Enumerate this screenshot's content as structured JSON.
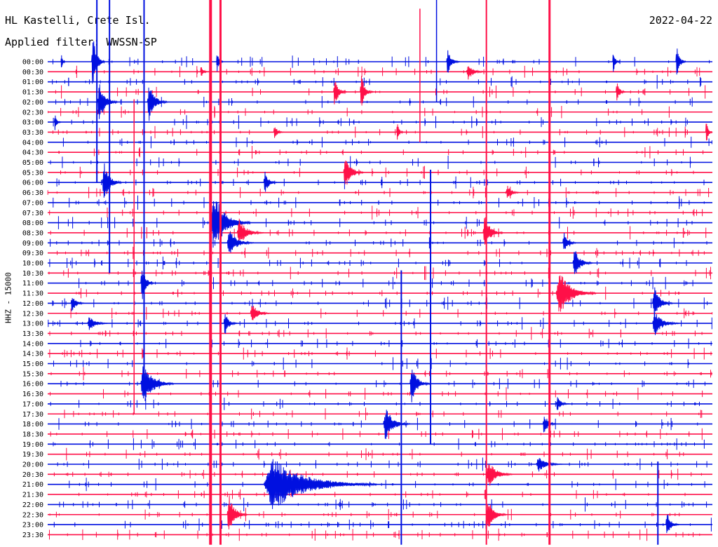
{
  "header": {
    "station": "HL Kastelli, Crete Isl.",
    "filter": "Applied filter: WWSSN-SP",
    "date": "2022-04-22"
  },
  "colors": {
    "blue": "#0010e0",
    "red": "#ff1048"
  },
  "chart_data": {
    "type": "line",
    "title": "HL Kastelli, Crete Isl.",
    "subtitle": "Applied filter: WWSSN-SP",
    "date": "2022-04-22",
    "ylabel": "HHZ - 15000",
    "xlabel": "",
    "trace_minutes": 30,
    "rows": [
      "00:00",
      "00:30",
      "01:00",
      "01:30",
      "02:00",
      "02:30",
      "03:00",
      "03:30",
      "04:00",
      "04:30",
      "05:00",
      "05:30",
      "06:00",
      "06:30",
      "07:00",
      "07:30",
      "08:00",
      "08:30",
      "09:00",
      "09:30",
      "10:00",
      "10:30",
      "11:00",
      "11:30",
      "12:00",
      "12:30",
      "13:00",
      "13:30",
      "14:00",
      "14:30",
      "15:00",
      "15:30",
      "16:00",
      "16:30",
      "17:00",
      "17:30",
      "18:00",
      "18:30",
      "19:00",
      "19:30",
      "20:00",
      "20:30",
      "21:00",
      "21:30",
      "22:00",
      "22:30",
      "23:00",
      "23:30"
    ],
    "row_colors": [
      "blue",
      "red"
    ],
    "events": [
      {
        "row": 0,
        "t": 0.02,
        "amp": 1.0,
        "len": 0.006
      },
      {
        "row": 0,
        "t": 0.066,
        "amp": 3.5,
        "len": 0.02
      },
      {
        "row": 0,
        "t": 0.254,
        "amp": 1.2,
        "len": 0.01
      },
      {
        "row": 0,
        "t": 0.6,
        "amp": 1.5,
        "len": 0.02
      },
      {
        "row": 0,
        "t": 0.85,
        "amp": 1.4,
        "len": 0.01
      },
      {
        "row": 0,
        "t": 0.945,
        "amp": 2.2,
        "len": 0.015
      },
      {
        "row": 1,
        "t": 0.23,
        "amp": 0.9,
        "len": 0.01
      },
      {
        "row": 1,
        "t": 0.63,
        "amp": 0.9,
        "len": 0.03
      },
      {
        "row": 3,
        "t": 0.43,
        "amp": 1.8,
        "len": 0.02
      },
      {
        "row": 3,
        "t": 0.47,
        "amp": 2.0,
        "len": 0.02
      },
      {
        "row": 3,
        "t": 0.855,
        "amp": 1.2,
        "len": 0.015
      },
      {
        "row": 4,
        "t": 0.075,
        "amp": 2.5,
        "len": 0.03
      },
      {
        "row": 4,
        "t": 0.15,
        "amp": 2.2,
        "len": 0.03
      },
      {
        "row": 6,
        "t": 0.01,
        "amp": 1.0,
        "len": 0.01
      },
      {
        "row": 7,
        "t": 0.34,
        "amp": 0.9,
        "len": 0.015
      },
      {
        "row": 7,
        "t": 0.525,
        "amp": 1.2,
        "len": 0.01
      },
      {
        "row": 7,
        "t": 0.99,
        "amp": 1.5,
        "len": 0.01
      },
      {
        "row": 11,
        "t": 0.445,
        "amp": 2.0,
        "len": 0.03
      },
      {
        "row": 12,
        "t": 0.082,
        "amp": 2.4,
        "len": 0.03
      },
      {
        "row": 12,
        "t": 0.325,
        "amp": 1.4,
        "len": 0.02
      },
      {
        "row": 13,
        "t": 0.69,
        "amp": 1.0,
        "len": 0.02
      },
      {
        "row": 16,
        "t": 0.245,
        "amp": 3.5,
        "len": 0.06
      },
      {
        "row": 17,
        "t": 0.285,
        "amp": 1.6,
        "len": 0.04
      },
      {
        "row": 17,
        "t": 0.655,
        "amp": 2.0,
        "len": 0.03
      },
      {
        "row": 18,
        "t": 0.27,
        "amp": 1.6,
        "len": 0.04
      },
      {
        "row": 18,
        "t": 0.775,
        "amp": 1.4,
        "len": 0.02
      },
      {
        "row": 20,
        "t": 0.79,
        "amp": 1.8,
        "len": 0.03
      },
      {
        "row": 22,
        "t": 0.14,
        "amp": 2.2,
        "len": 0.02
      },
      {
        "row": 23,
        "t": 0.765,
        "amp": 2.6,
        "len": 0.06
      },
      {
        "row": 24,
        "t": 0.035,
        "amp": 1.2,
        "len": 0.02
      },
      {
        "row": 24,
        "t": 0.91,
        "amp": 2.0,
        "len": 0.03
      },
      {
        "row": 25,
        "t": 0.305,
        "amp": 1.2,
        "len": 0.03
      },
      {
        "row": 26,
        "t": 0.06,
        "amp": 1.0,
        "len": 0.03
      },
      {
        "row": 26,
        "t": 0.265,
        "amp": 1.4,
        "len": 0.02
      },
      {
        "row": 26,
        "t": 0.91,
        "amp": 1.5,
        "len": 0.04
      },
      {
        "row": 32,
        "t": 0.14,
        "amp": 2.5,
        "len": 0.05
      },
      {
        "row": 32,
        "t": 0.545,
        "amp": 2.2,
        "len": 0.03
      },
      {
        "row": 34,
        "t": 0.765,
        "amp": 0.9,
        "len": 0.02
      },
      {
        "row": 36,
        "t": 0.505,
        "amp": 2.0,
        "len": 0.04
      },
      {
        "row": 36,
        "t": 0.745,
        "amp": 1.4,
        "len": 0.02
      },
      {
        "row": 40,
        "t": 0.735,
        "amp": 0.9,
        "len": 0.04
      },
      {
        "row": 41,
        "t": 0.66,
        "amp": 1.6,
        "len": 0.04
      },
      {
        "row": 42,
        "t": 0.325,
        "amp": 3.0,
        "len": 0.17
      },
      {
        "row": 45,
        "t": 0.27,
        "amp": 2.5,
        "len": 0.03
      },
      {
        "row": 45,
        "t": 0.66,
        "amp": 2.0,
        "len": 0.03
      },
      {
        "row": 46,
        "t": 0.93,
        "amp": 1.6,
        "len": 0.02
      }
    ],
    "spikes": [
      {
        "t": 0.245,
        "row_from": 0,
        "row_to": 48,
        "color": "red",
        "width": 4
      },
      {
        "t": 0.26,
        "row_from": 0,
        "row_to": 48,
        "color": "red",
        "width": 3
      },
      {
        "t": 0.755,
        "row_from": 0,
        "row_to": 48,
        "color": "red",
        "width": 3
      },
      {
        "t": 0.074,
        "row_from": 0,
        "row_to": 12,
        "color": "blue",
        "width": 2
      },
      {
        "t": 0.093,
        "row_from": 0,
        "row_to": 21,
        "color": "blue",
        "width": 2
      },
      {
        "t": 0.145,
        "row_from": 0,
        "row_to": 33,
        "color": "blue",
        "width": 2
      },
      {
        "t": 0.13,
        "row_from": 10,
        "row_to": 35,
        "color": "red",
        "width": 1.5
      },
      {
        "t": 0.66,
        "row_from": 0,
        "row_to": 48,
        "color": "red",
        "width": 2
      },
      {
        "t": 0.532,
        "row_from": 27,
        "row_to": 48,
        "color": "blue",
        "width": 2
      },
      {
        "t": 0.576,
        "row_from": 17,
        "row_to": 38,
        "color": "blue",
        "width": 2
      },
      {
        "t": 0.918,
        "row_from": 46,
        "row_to": 48,
        "color": "blue",
        "width": 2
      },
      {
        "t": 0.56,
        "row_from": 1,
        "row_to": 8,
        "color": "red",
        "width": 1.5
      },
      {
        "t": 0.585,
        "row_from": 0,
        "row_to": 4,
        "color": "blue",
        "width": 1.5
      }
    ]
  }
}
